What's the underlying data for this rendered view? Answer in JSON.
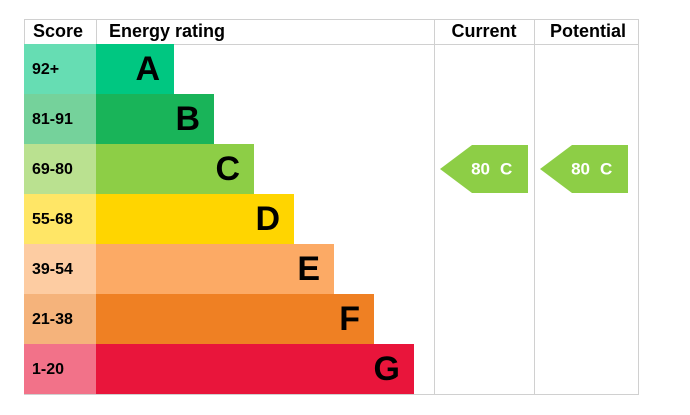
{
  "header": {
    "score": "Score",
    "rating": "Energy rating",
    "current": "Current",
    "potential": "Potential"
  },
  "bands": [
    {
      "score": "92+",
      "letter": "A",
      "color": "#00c781"
    },
    {
      "score": "81-91",
      "letter": "B",
      "color": "#19b459"
    },
    {
      "score": "69-80",
      "letter": "C",
      "color": "#8dce46"
    },
    {
      "score": "55-68",
      "letter": "D",
      "color": "#ffd500"
    },
    {
      "score": "39-54",
      "letter": "E",
      "color": "#fcaa65"
    },
    {
      "score": "21-38",
      "letter": "F",
      "color": "#ef8023"
    },
    {
      "score": "1-20",
      "letter": "G",
      "color": "#e9153b"
    }
  ],
  "current": {
    "value": 80,
    "letter": "C"
  },
  "potential": {
    "value": 80,
    "letter": "C"
  }
}
